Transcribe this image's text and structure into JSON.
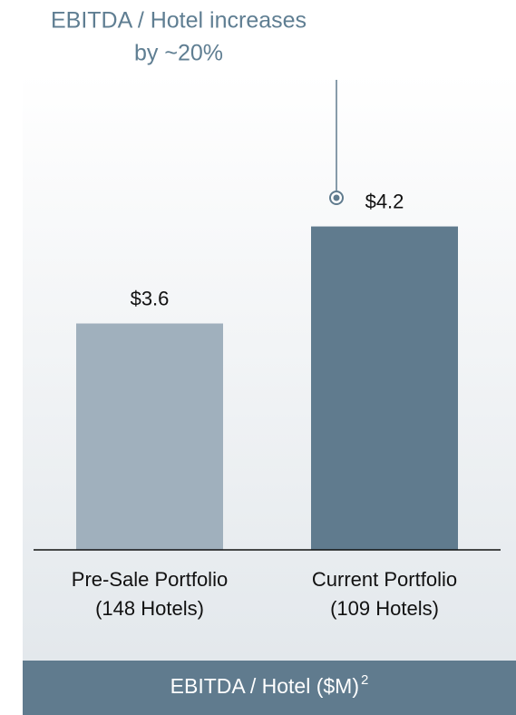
{
  "chart_data": {
    "type": "bar",
    "annotation": [
      "EBITDA / Hotel increases",
      "by ~20%"
    ],
    "categories": [
      [
        "Pre-Sale Portfolio",
        "(148 Hotels)"
      ],
      [
        "Current Portfolio",
        "(109 Hotels)"
      ]
    ],
    "values": [
      3.6,
      4.2
    ],
    "value_labels": [
      "$3.6",
      "$4.2"
    ],
    "colors": [
      "#a0b0bd",
      "#607b8e"
    ],
    "ylim": [
      2.2,
      5.0
    ],
    "x_label": "EBITDA / Hotel ($M)",
    "x_label_note": "2"
  }
}
